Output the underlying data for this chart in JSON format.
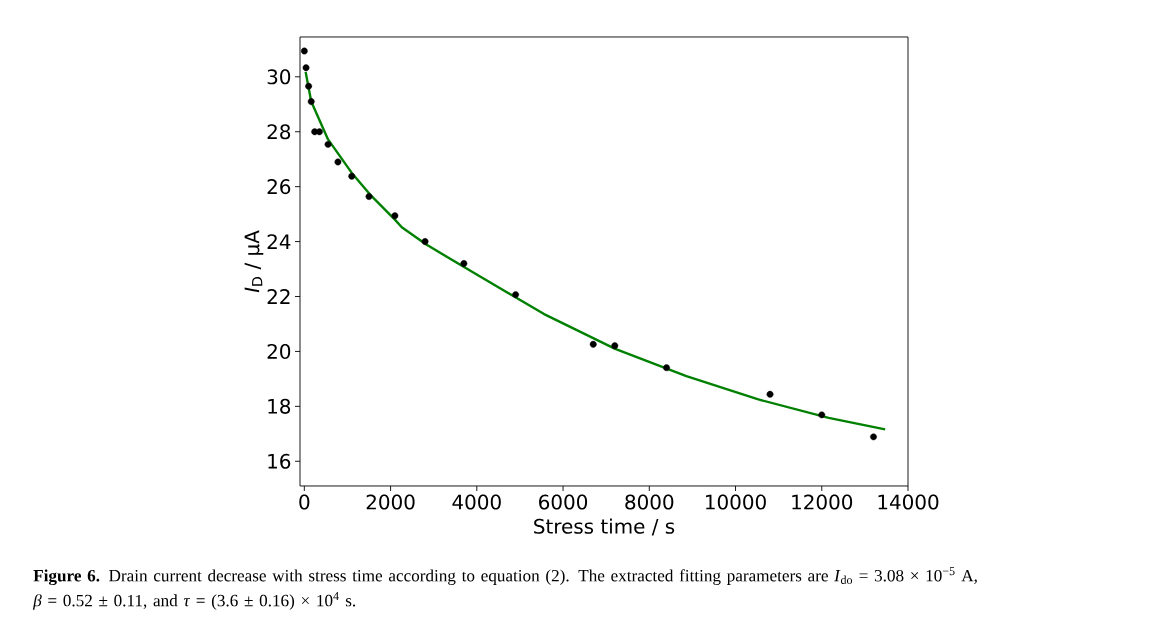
{
  "chart_data": {
    "type": "scatter",
    "xlabel": "Stress time / s",
    "ylabel": "*I*$_{D}$ / μA",
    "xlim": [
      -100,
      14000
    ],
    "ylim": [
      15.1,
      31.45
    ],
    "xticks": [
      0,
      2000,
      4000,
      6000,
      8000,
      10000,
      12000,
      14000
    ],
    "yticks": [
      16,
      18,
      20,
      22,
      24,
      26,
      28,
      30
    ],
    "series": [
      {
        "color": "#000000",
        "x": [
          0,
          40,
          100,
          160,
          240,
          350,
          550,
          780,
          1100,
          1500,
          2100,
          2800,
          3700,
          4900,
          6700,
          7200,
          8400,
          10800,
          12000,
          13200
        ],
        "values": [
          30.94,
          30.33,
          29.66,
          29.1,
          28.0,
          28.0,
          27.54,
          26.9,
          26.38,
          25.64,
          24.94,
          24.0,
          23.2,
          22.07,
          20.26,
          20.21,
          19.41,
          18.44,
          17.69,
          16.89
        ]
      },
      {
        "type": "line",
        "color": "#008000",
        "x": [
          30,
          160,
          550,
          1100,
          1520,
          2100,
          2260,
          2820,
          3910,
          5560,
          7210,
          8860,
          10510,
          12160,
          13470
        ],
        "values": [
          30.18,
          29.1,
          27.72,
          26.5,
          25.72,
          24.8,
          24.52,
          23.9,
          22.88,
          21.36,
          20.09,
          19.1,
          18.26,
          17.58,
          17.16
        ]
      }
    ],
    "annotations": [
      "**Figure 6.** Drain current decrease with stress time according to equation (2). The extracted fitting parameters are *I*$_{do}$ = 3.08 × 10$^{−5}$ A, *β* = 0.52 ± 0.11, and *τ* = (3.6 ± 0.16) × 10$^{4}$ s."
    ]
  }
}
